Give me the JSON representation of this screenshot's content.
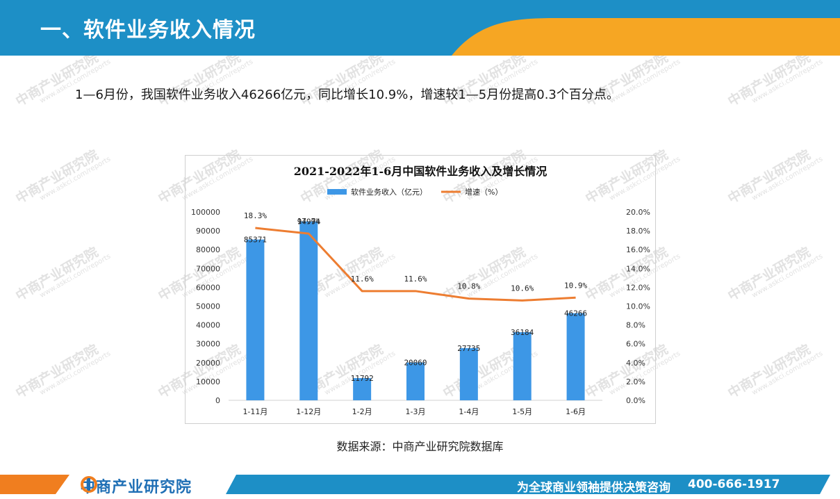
{
  "header": {
    "title": "一、软件业务收入情况"
  },
  "intro_text": "1—6月份，我国软件业务收入46266亿元，同比增长10.9%，增速较1—5月份提高0.3个百分点。",
  "watermark": {
    "cn": "中商产业研究院",
    "en": "www.askci.com/reports"
  },
  "source_text": "数据来源：中商产业研究院数据库",
  "footer": {
    "logo_text": "中商产业研究院",
    "slogan": "为全球商业领袖提供决策咨询",
    "phone": "400-666-1917"
  },
  "colors": {
    "header_blue": "#1d8fc6",
    "header_orange": "#f6a623",
    "bar": "#3d97e6",
    "line": "#ed7d31",
    "footer_blue": "#1d8fc6",
    "footer_orange": "#f07e1f"
  },
  "chart_data": {
    "type": "bar",
    "title": "2021-2022年1-6月中国软件业务收入及增长情况",
    "categories": [
      "1-11月",
      "1-12月",
      "1-2月",
      "1-3月",
      "1-4月",
      "1-5月",
      "1-6月"
    ],
    "series": [
      {
        "name": "软件业务收入（亿元）",
        "type": "bar",
        "axis": "left",
        "values": [
          85371,
          94994,
          11792,
          20060,
          27735,
          36184,
          46266
        ],
        "labels": [
          "85371",
          "94994",
          "11792",
          "20060",
          "27735",
          "36184",
          "46266"
        ]
      },
      {
        "name": "增速（%）",
        "type": "line",
        "axis": "right",
        "values": [
          18.3,
          17.7,
          11.6,
          11.6,
          10.8,
          10.6,
          10.9
        ],
        "labels": [
          "18.3%",
          "17.7%",
          "11.6%",
          "11.6%",
          "10.8%",
          "10.6%",
          "10.9%"
        ]
      }
    ],
    "y_left": {
      "min": 0,
      "max": 100000,
      "ticks": [
        "0",
        "10000",
        "20000",
        "30000",
        "40000",
        "50000",
        "60000",
        "70000",
        "80000",
        "90000",
        "100000"
      ]
    },
    "y_right": {
      "min": 0,
      "max": 20,
      "ticks": [
        "0.0%",
        "2.0%",
        "4.0%",
        "6.0%",
        "8.0%",
        "10.0%",
        "12.0%",
        "14.0%",
        "16.0%",
        "18.0%",
        "20.0%"
      ]
    },
    "legend_position": "top",
    "grid": false
  }
}
